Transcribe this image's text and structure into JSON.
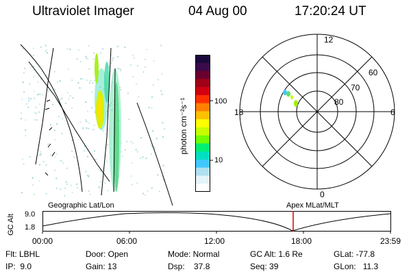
{
  "header": {
    "instrument": "Ultraviolet Imager",
    "date": "04 Aug 00",
    "time": "17:20:24 UT"
  },
  "colorbar": {
    "unit_label": "photon cm⁻²s⁻¹",
    "ticks": [
      "100",
      "10"
    ],
    "colors": [
      "#1a0a3c",
      "#3a0a4a",
      "#6a0030",
      "#a00018",
      "#d00010",
      "#ff3000",
      "#ff8000",
      "#ffc000",
      "#ffff00",
      "#c8ff00",
      "#70ff00",
      "#00f070",
      "#00e0c0",
      "#40c8ff",
      "#b0e0f0",
      "#e4f4f8",
      "#ffffff"
    ]
  },
  "polar": {
    "mlt_labels": {
      "top": "12",
      "right": "6",
      "bottom": "0",
      "left": "18"
    },
    "lat_labels": [
      "60",
      "70",
      "80"
    ]
  },
  "panels": {
    "left_label": "Geographic Lat/Lon",
    "right_label": "Apex MLat/MLT"
  },
  "altitude_plot": {
    "ylabel": "GC Alt",
    "yticks": [
      "9.0",
      "1.8"
    ],
    "xticks": [
      "00:00",
      "06:00",
      "12:00",
      "18:00",
      "23:59"
    ],
    "marker_color": "#d00000",
    "marker_time": "17:20"
  },
  "footer": {
    "filter": "Flt: LBHL",
    "ip": "IP:  9.0",
    "door": "Door: Open",
    "gain": "Gain: 13",
    "mode": "Mode: Normal",
    "dsp": "Dsp:    37.8",
    "gc_alt": "GC Alt: 1.6 Re",
    "seq": "Seq: 39",
    "glat": "GLat: -77.8",
    "glon": "GLon:   11.3"
  }
}
